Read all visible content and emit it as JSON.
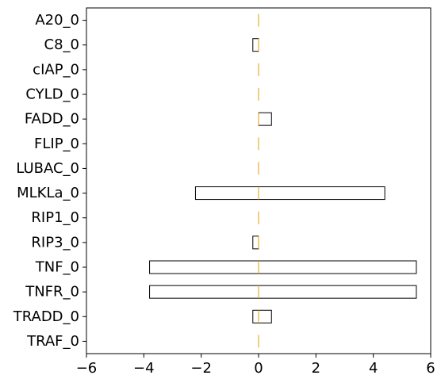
{
  "chart_data": {
    "type": "bar",
    "orientation": "horizontal",
    "title": "",
    "xlabel": "",
    "ylabel": "",
    "xlim": [
      -6,
      6
    ],
    "xticks": [
      -6,
      -4,
      -2,
      0,
      2,
      4,
      6
    ],
    "grid": false,
    "median_color": "#e69f00",
    "box_edge_color": "#000000",
    "categories": [
      "A20_0",
      "C8_0",
      "cIAP_0",
      "CYLD_0",
      "FADD_0",
      "FLIP_0",
      "LUBAC_0",
      "MLKLa_0",
      "RIP1_0",
      "RIP3_0",
      "TNF_0",
      "TNFR_0",
      "TRADD_0",
      "TRAF_0"
    ],
    "ranges": [
      [
        0,
        0
      ],
      [
        -0.2,
        0
      ],
      [
        0,
        0
      ],
      [
        0,
        0
      ],
      [
        0,
        0.45
      ],
      [
        0,
        0
      ],
      [
        0,
        0
      ],
      [
        -2.2,
        4.4
      ],
      [
        0,
        0
      ],
      [
        -0.2,
        0
      ],
      [
        -3.8,
        5.5
      ],
      [
        -3.8,
        5.5
      ],
      [
        -0.2,
        0.45
      ],
      [
        0,
        0
      ]
    ],
    "medians": [
      0,
      0,
      0,
      0,
      0,
      0,
      0,
      0,
      0,
      0,
      0,
      0,
      0,
      0
    ]
  }
}
